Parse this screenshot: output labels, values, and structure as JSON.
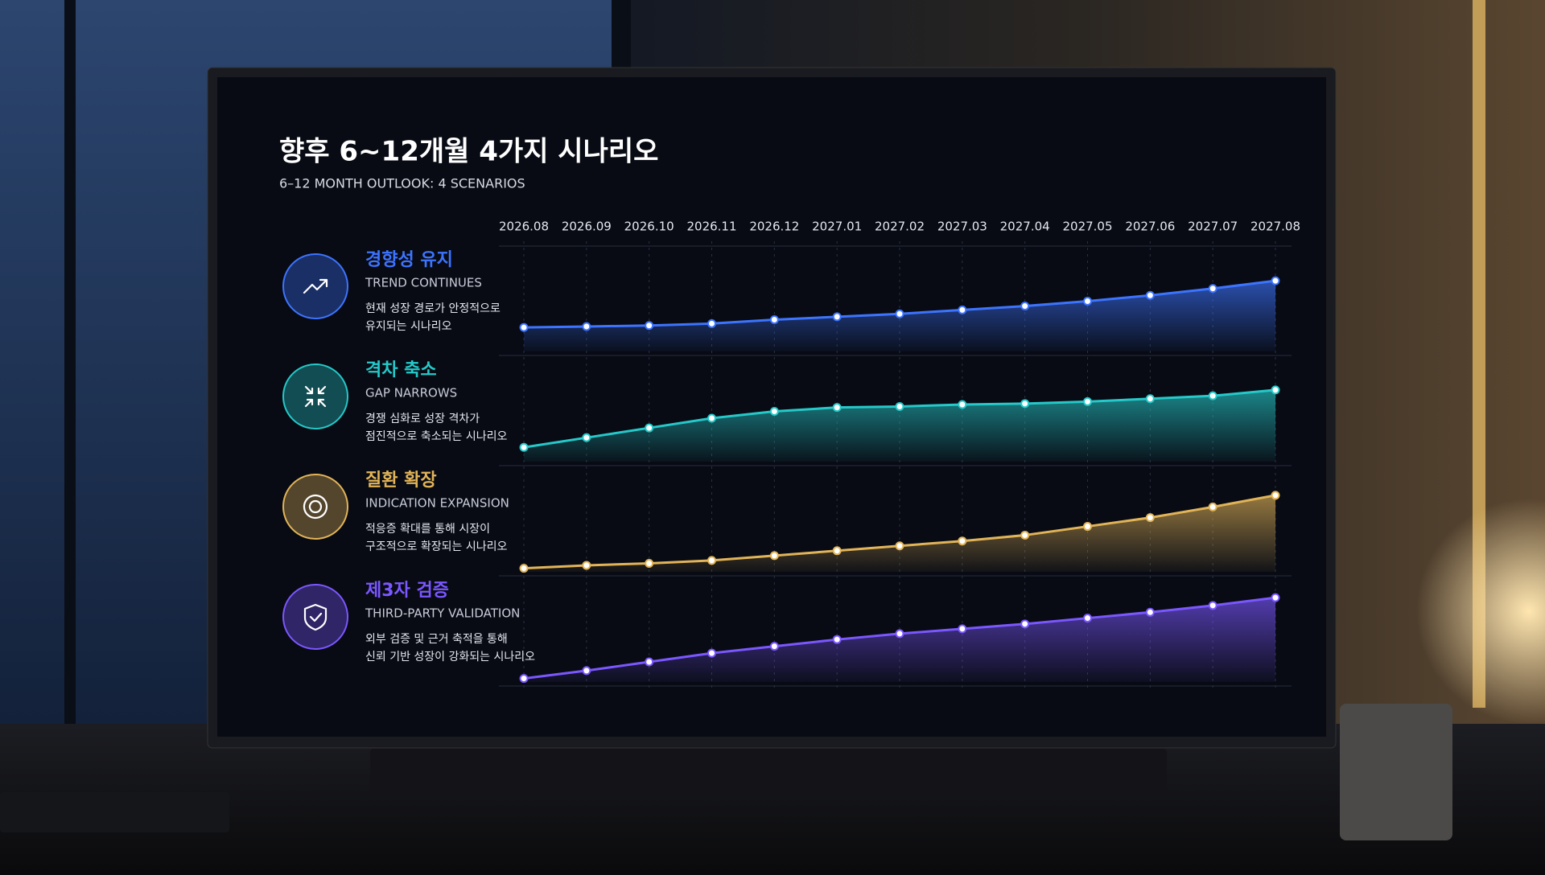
{
  "chart_data": {
    "type": "area",
    "title": "향후 6~12개월 4가지 시나리오",
    "subtitle": "6–12 MONTH OUTLOOK: 4 SCENARIOS",
    "categories": [
      "2026.08",
      "2026.09",
      "2026.10",
      "2026.11",
      "2026.12",
      "2027.01",
      "2027.02",
      "2027.03",
      "2027.04",
      "2027.05",
      "2027.06",
      "2027.07",
      "2027.08"
    ],
    "ylim": [
      0,
      100
    ],
    "grid": true,
    "series": [
      {
        "name": "경향성 유지",
        "name_en": "TREND CONTINUES",
        "description": [
          "현재 성장 경로가 안정적으로",
          "유지되는 시나리오"
        ],
        "color": "#3d74ff",
        "values": [
          23,
          24,
          25,
          27,
          31,
          34,
          37,
          41,
          45,
          50,
          56,
          63,
          71
        ]
      },
      {
        "name": "격차 축소",
        "name_en": "GAP NARROWS",
        "description": [
          "경쟁 심화로 성장 격차가",
          "점진적으로 축소되는 시나리오"
        ],
        "color": "#25c9c9",
        "values": [
          13,
          23,
          33,
          43,
          50,
          54,
          55,
          57,
          58,
          60,
          63,
          66,
          72
        ]
      },
      {
        "name": "질환 확장",
        "name_en": "INDICATION EXPANSION",
        "description": [
          "적응증 확대를 통해 시장이",
          "구조적으로 확장되는 시나리오"
        ],
        "color": "#e2b458",
        "values": [
          2,
          5,
          7,
          10,
          15,
          20,
          25,
          30,
          36,
          45,
          54,
          65,
          77
        ]
      },
      {
        "name": "제3자 검증",
        "name_en": "THIRD-PARTY VALIDATION",
        "description": [
          "외부 검증 및 근거 축적을 통해",
          "신뢰 기반 성장이 강화되는 시나리오"
        ],
        "color": "#7b57ff",
        "values": [
          2,
          10,
          19,
          28,
          35,
          42,
          48,
          53,
          58,
          64,
          70,
          77,
          85
        ]
      }
    ]
  }
}
